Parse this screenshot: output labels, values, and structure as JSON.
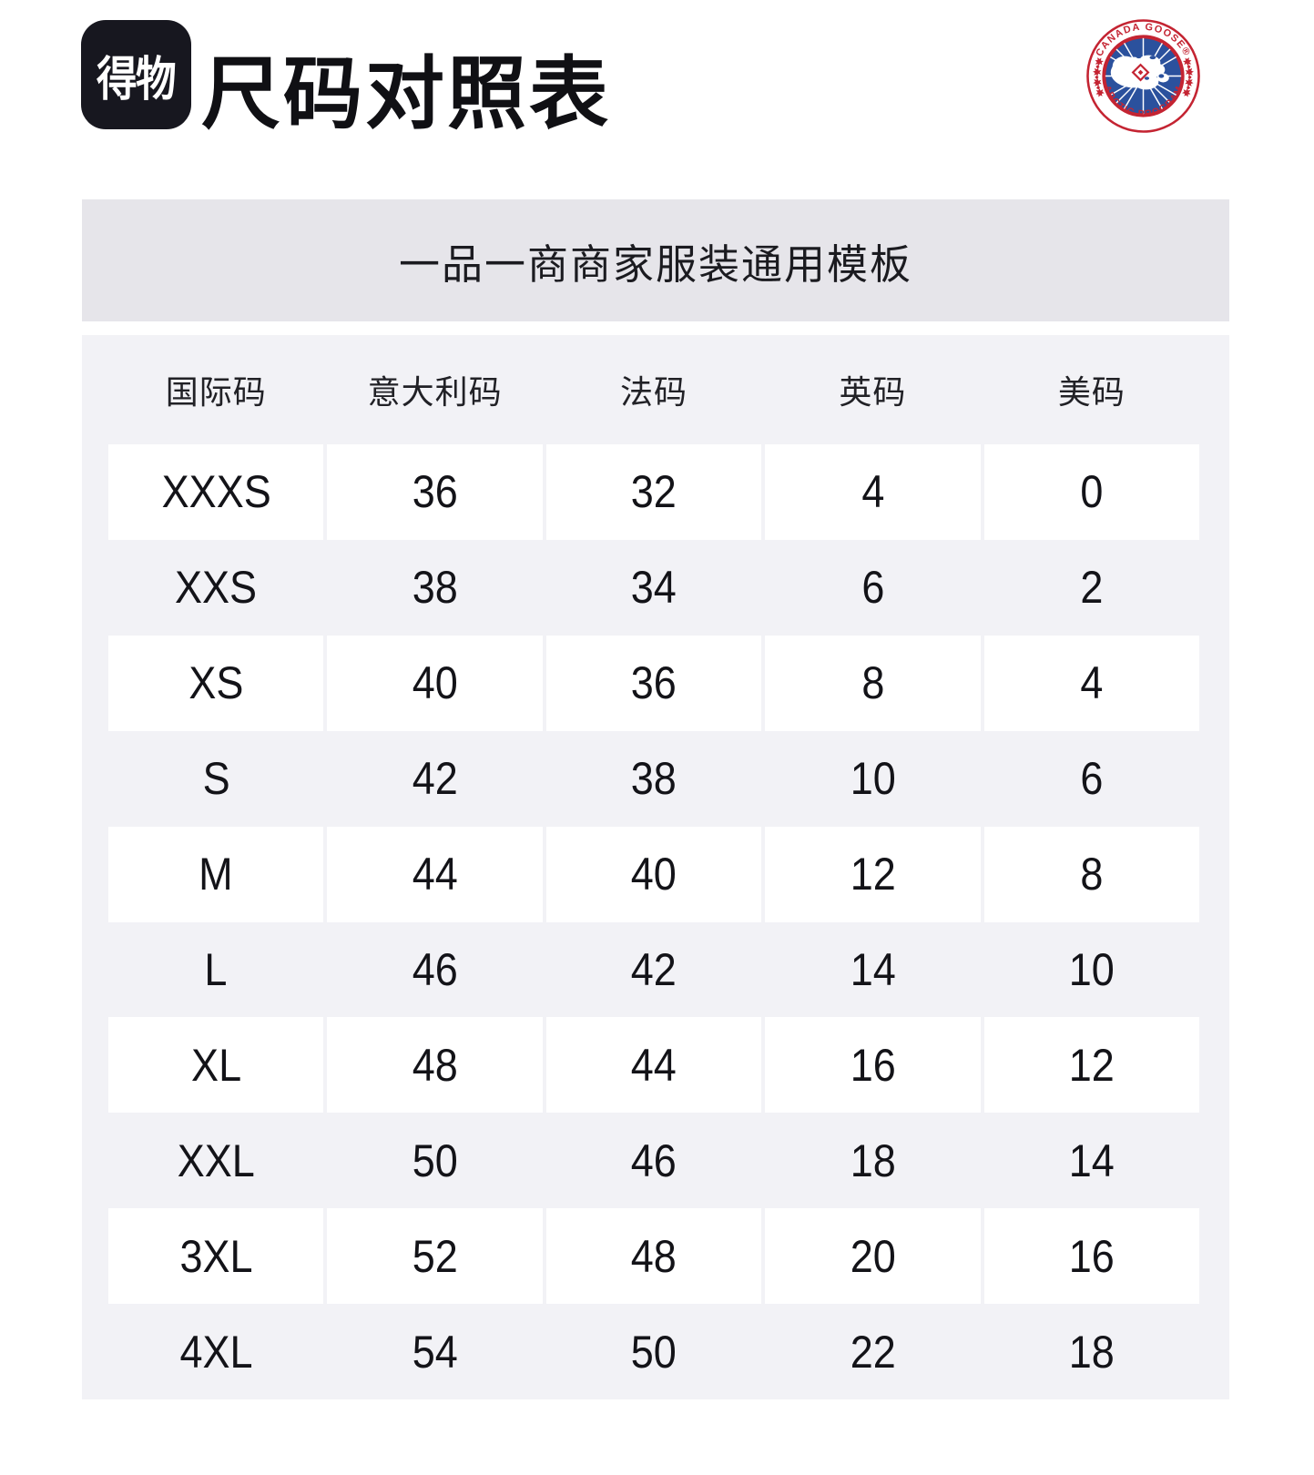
{
  "header": {
    "app_logo_text": "得物",
    "title": "尺码对照表"
  },
  "brand_badge": {
    "name": "Canada Goose Arctic Program badge",
    "top_text": "CANADA GOOSE®",
    "bottom_text": "ARCTIC PROGRAM",
    "colors": {
      "red": "#c42432",
      "blue": "#2b519d"
    }
  },
  "banner": {
    "title": "一品一商商家服装通用模板",
    "background": "#e6e5ea"
  },
  "size_table": {
    "background": "#f2f2f6",
    "columns": [
      "国际码",
      "意大利码",
      "法码",
      "英码",
      "美码"
    ],
    "rows": [
      [
        "XXXS",
        "36",
        "32",
        "4",
        "0"
      ],
      [
        "XXS",
        "38",
        "34",
        "6",
        "2"
      ],
      [
        "XS",
        "40",
        "36",
        "8",
        "4"
      ],
      [
        "S",
        "42",
        "38",
        "10",
        "6"
      ],
      [
        "M",
        "44",
        "40",
        "12",
        "8"
      ],
      [
        "L",
        "46",
        "42",
        "14",
        "10"
      ],
      [
        "XL",
        "48",
        "44",
        "16",
        "12"
      ],
      [
        "XXL",
        "50",
        "46",
        "18",
        "14"
      ],
      [
        "3XL",
        "52",
        "48",
        "20",
        "16"
      ],
      [
        "4XL",
        "54",
        "50",
        "22",
        "18"
      ]
    ]
  }
}
